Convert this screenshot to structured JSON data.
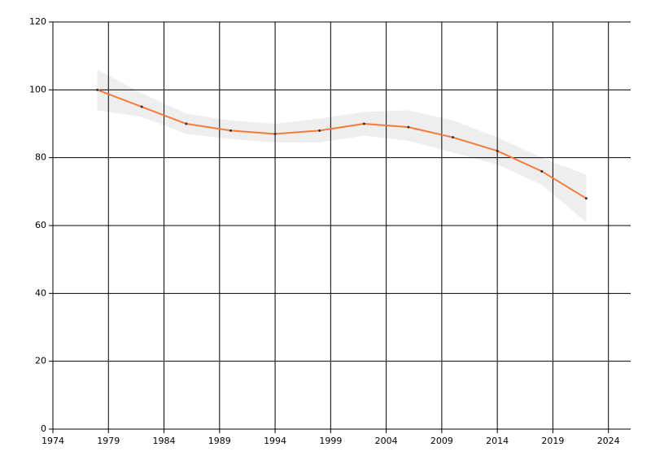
{
  "chart_data": {
    "type": "line",
    "x": [
      1978,
      1982,
      1986,
      1990,
      1994,
      1998,
      2002,
      2006,
      2010,
      2014,
      2018,
      2022
    ],
    "series": [
      {
        "color": "#f47b3c",
        "values": [
          100,
          95,
          90,
          88,
          87,
          88,
          90,
          89,
          86,
          82,
          76,
          68
        ]
      }
    ],
    "band": {
      "color": "#eeeeee",
      "upper": [
        106,
        99,
        93,
        91,
        90,
        91.5,
        93.5,
        94,
        91,
        86,
        80,
        75
      ],
      "lower": [
        94,
        92,
        87,
        85.5,
        84.5,
        84.5,
        86.5,
        85,
        81.5,
        78,
        72,
        61
      ]
    },
    "xlim": [
      1974,
      2026
    ],
    "xticks": [
      1974,
      1979,
      1984,
      1989,
      1994,
      1999,
      2004,
      2009,
      2014,
      2019,
      2024
    ],
    "ylim": [
      0,
      120
    ],
    "yticks": [
      0,
      20,
      40,
      60,
      80,
      100,
      120
    ],
    "grid": true,
    "marker_color": "#333333"
  }
}
